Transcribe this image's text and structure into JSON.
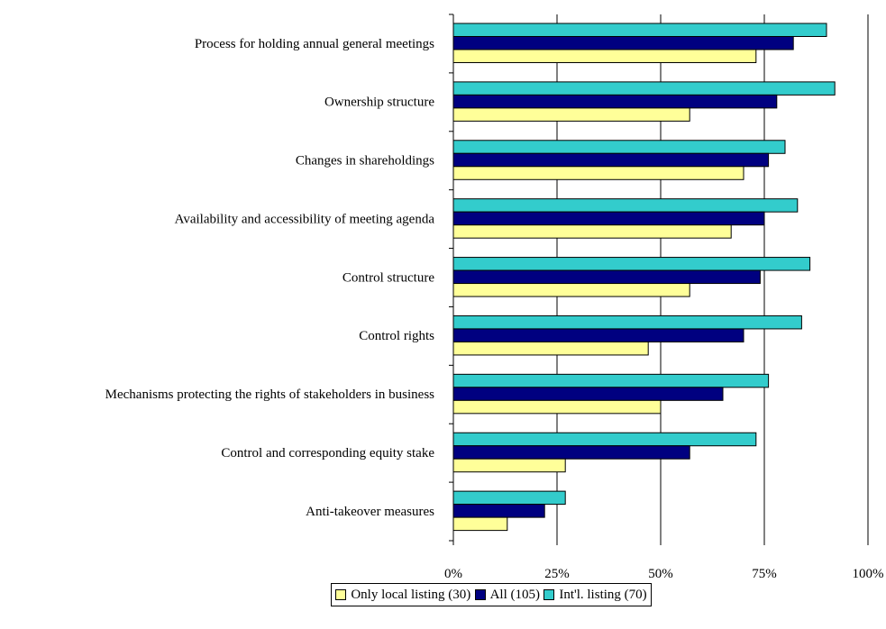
{
  "chart_data": {
    "type": "bar",
    "orientation": "horizontal",
    "categories": [
      "Process for holding annual general meetings",
      "Ownership structure",
      "Changes in shareholdings",
      "Availability and accessibility of meeting agenda",
      "Control structure",
      "Control rights",
      "Mechanisms protecting the rights of stakeholders in business",
      "Control and corresponding equity stake",
      "Anti-takeover measures"
    ],
    "series": [
      {
        "name": "Only local listing (30)",
        "color": "#ffff99",
        "values": [
          73,
          57,
          70,
          67,
          57,
          47,
          50,
          27,
          13
        ]
      },
      {
        "name": "All (105)",
        "color": "#000080",
        "values": [
          82,
          78,
          76,
          75,
          74,
          70,
          65,
          57,
          22
        ]
      },
      {
        "name": "Int'l. listing (70)",
        "color": "#33cccc",
        "values": [
          90,
          92,
          80,
          83,
          86,
          84,
          76,
          73,
          27
        ]
      }
    ],
    "xlim": [
      0,
      100
    ],
    "xticks": [
      "0%",
      "25%",
      "50%",
      "75%",
      "100%"
    ],
    "grid": true,
    "legend_position": "bottom"
  }
}
